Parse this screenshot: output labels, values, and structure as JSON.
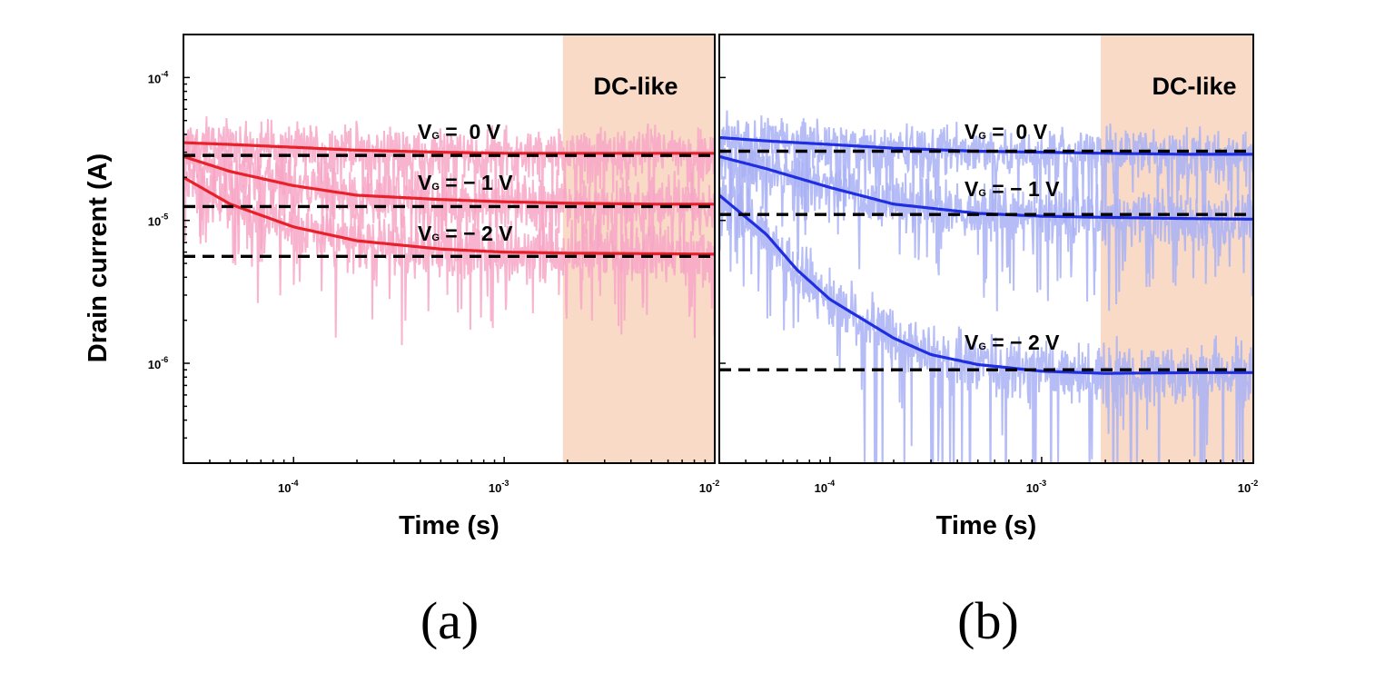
{
  "chart_data": [
    {
      "type": "line",
      "panel_label": "(a)",
      "xlabel": "Time (s)",
      "ylabel": "Drain current (A)",
      "xscale": "log",
      "yscale": "log",
      "xlim": [
        3e-05,
        0.01
      ],
      "ylim": [
        2e-07,
        0.0002
      ],
      "x_ticks": [
        {
          "base": "10",
          "exp": "-4",
          "value": 0.0001
        },
        {
          "base": "10",
          "exp": "-3",
          "value": 0.001
        },
        {
          "base": "10",
          "exp": "-2",
          "value": 0.01
        }
      ],
      "y_ticks": [
        {
          "base": "10",
          "exp": "-4",
          "value": 0.0001
        },
        {
          "base": "10",
          "exp": "-5",
          "value": 1e-05
        },
        {
          "base": "10",
          "exp": "-6",
          "value": 1e-06
        }
      ],
      "shaded_region": {
        "label": "DC-like",
        "x_start": 0.0019,
        "x_end": 0.01,
        "color": "#f8dac7"
      },
      "raw_color": "#f7a6c6",
      "fit_color": "#e8202a",
      "dashed_color": "#000000",
      "series": [
        {
          "label_prefix": "V",
          "label_sub": "G",
          "label_value": " =  0 V",
          "x": [
            3e-05,
            5e-05,
            0.0001,
            0.0002,
            0.0005,
            0.001,
            0.002,
            0.005,
            0.01
          ],
          "values": [
            3.5e-05,
            3.4e-05,
            3.25e-05,
            3.1e-05,
            3e-05,
            2.95e-05,
            2.95e-05,
            2.95e-05,
            2.95e-05
          ],
          "dc_level": 2.85e-05
        },
        {
          "label_prefix": "V",
          "label_sub": "G",
          "label_value": " = − 1 V",
          "x": [
            3e-05,
            5e-05,
            0.0001,
            0.0002,
            0.0005,
            0.001,
            0.002,
            0.005,
            0.01
          ],
          "values": [
            2.8e-05,
            2.2e-05,
            1.75e-05,
            1.5e-05,
            1.4e-05,
            1.35e-05,
            1.32e-05,
            1.3e-05,
            1.3e-05
          ],
          "dc_level": 1.25e-05
        },
        {
          "label_prefix": "V",
          "label_sub": "G",
          "label_value": " = − 2 V",
          "x": [
            3e-05,
            5e-05,
            0.0001,
            0.0002,
            0.0005,
            0.001,
            0.002,
            0.005,
            0.01
          ],
          "values": [
            2e-05,
            1.3e-05,
            9e-06,
            7.2e-06,
            6.3e-06,
            6e-06,
            5.9e-06,
            5.85e-06,
            5.8e-06
          ],
          "dc_level": 5.6e-06
        }
      ]
    },
    {
      "type": "line",
      "panel_label": "(b)",
      "xlabel": "Time (s)",
      "ylabel": "",
      "xscale": "log",
      "yscale": "log",
      "xlim": [
        3e-05,
        0.01
      ],
      "ylim": [
        2e-07,
        0.0002
      ],
      "x_ticks": [
        {
          "base": "10",
          "exp": "-4",
          "value": 0.0001
        },
        {
          "base": "10",
          "exp": "-3",
          "value": 0.001
        },
        {
          "base": "10",
          "exp": "-2",
          "value": 0.01
        }
      ],
      "y_ticks": [],
      "shaded_region": {
        "label": "DC-like",
        "x_start": 0.0019,
        "x_end": 0.01,
        "color": "#f8dac7"
      },
      "raw_color": "#a9b2f4",
      "fit_color": "#1f2ee0",
      "dashed_color": "#000000",
      "series": [
        {
          "label_prefix": "V",
          "label_sub": "G",
          "label_value": " =  0 V",
          "x": [
            3e-05,
            5e-05,
            0.0001,
            0.0002,
            0.0005,
            0.001,
            0.002,
            0.005,
            0.01
          ],
          "values": [
            3.8e-05,
            3.6e-05,
            3.4e-05,
            3.2e-05,
            3.05e-05,
            3e-05,
            2.95e-05,
            2.9e-05,
            2.9e-05
          ],
          "dc_level": 3.05e-05
        },
        {
          "label_prefix": "V",
          "label_sub": "G",
          "label_value": " = − 1 V",
          "x": [
            3e-05,
            5e-05,
            0.0001,
            0.0002,
            0.0005,
            0.001,
            0.002,
            0.005,
            0.01
          ],
          "values": [
            2.8e-05,
            2.3e-05,
            1.7e-05,
            1.3e-05,
            1.12e-05,
            1.07e-05,
            1.05e-05,
            1.03e-05,
            1.02e-05
          ],
          "dc_level": 1.1e-05
        },
        {
          "label_prefix": "V",
          "label_sub": "G",
          "label_value": " = − 2 V",
          "x": [
            3e-05,
            5e-05,
            7e-05,
            0.0001,
            0.0002,
            0.0003,
            0.0005,
            0.001,
            0.002,
            0.005,
            0.01
          ],
          "values": [
            1.5e-05,
            8e-06,
            4.5e-06,
            2.8e-06,
            1.5e-06,
            1.15e-06,
            9.8e-07,
            8.8e-07,
            8.5e-07,
            8.6e-07,
            8.6e-07
          ],
          "dc_level": 9e-07
        }
      ]
    }
  ]
}
